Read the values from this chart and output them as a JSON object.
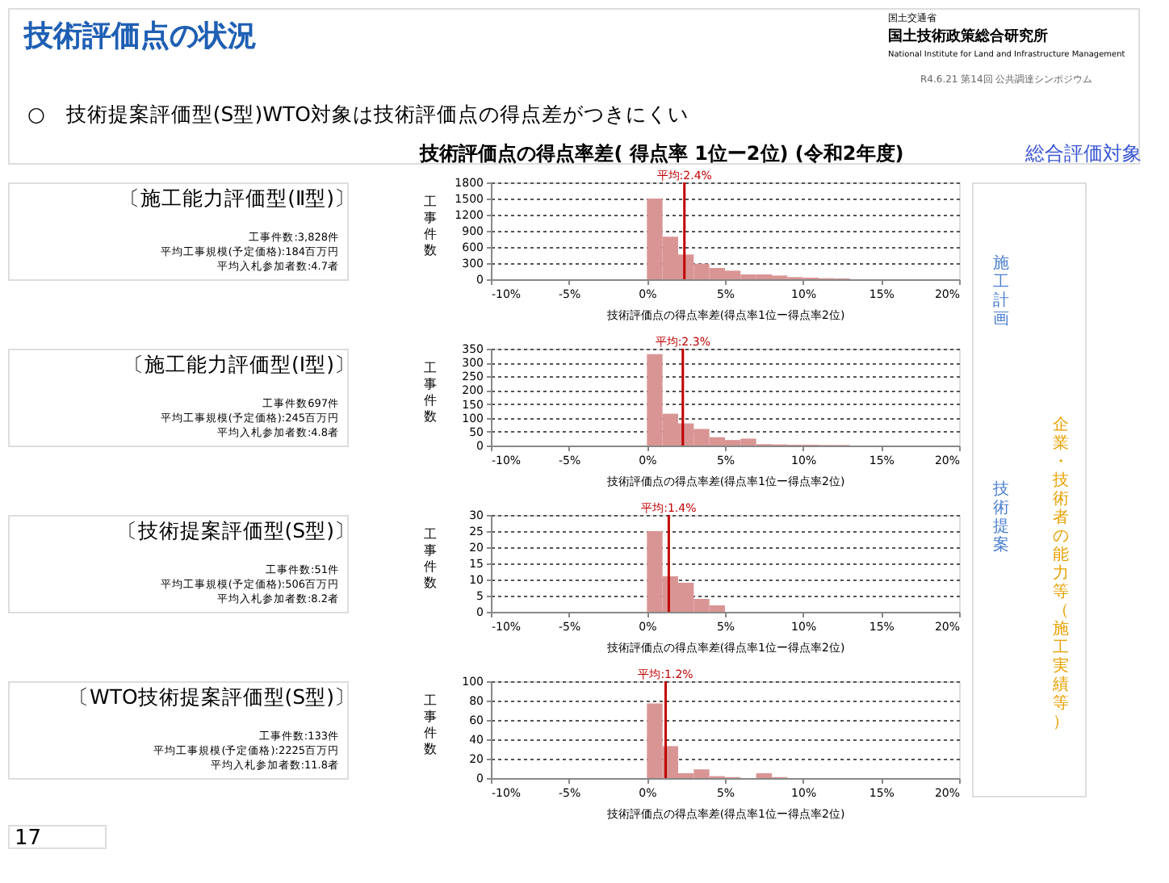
{
  "chart_data": [
    {
      "type": "other",
      "annotations": [
        "技術評価点の状況",
        "国土交通省",
        "国土技術政策総合研究所",
        "National Institute for Land and Infrastructure Management",
        "R4.6.21 第14回 公共調達シンポジウム",
        "○　技術提案評価型(S型)WTO対象は技術評価点の得点差がつきにくい",
        "技術評価点の得点率差( 得点率 1位ー2位) (令和2年度)",
        "総合評価対象",
        "17",
        "企業・技術者の能力等（施工実績等）",
        "施工計画",
        "技術提案"
      ]
    },
    {
      "type": "histogram",
      "title": "〔施工能力評価型(Ⅱ型)〕",
      "annotations": [
        "工事件数:3,828件",
        "平均工事規模(予定価格):184百万円",
        "平均入札参加者数:4.7者"
      ],
      "xlabel": "技術評価点の得点率差(得点率1位ー得点率2位)",
      "ylabel": "工事件数",
      "color": "#d99594",
      "grid": "y",
      "bins": [
        0,
        1,
        2,
        3,
        4,
        5,
        6,
        7,
        8,
        9,
        10,
        11,
        12,
        13
      ],
      "values": [
        1500,
        790,
        460,
        290,
        210,
        160,
        90,
        90,
        70,
        40,
        30,
        20,
        15
      ],
      "xlim": [
        -10,
        20
      ],
      "xticks": [
        {
          "value": -10,
          "label": "-10%"
        },
        {
          "value": -5,
          "label": "-5%"
        },
        {
          "value": 0,
          "label": "0%"
        },
        {
          "value": 5,
          "label": "5%"
        },
        {
          "value": 10,
          "label": "10%"
        },
        {
          "value": 15,
          "label": "15%"
        },
        {
          "value": 20,
          "label": "20%"
        }
      ],
      "ylim": [
        0,
        1800
      ],
      "yticks": [
        0,
        300,
        600,
        900,
        1200,
        1500,
        1800
      ],
      "ref_lines": [
        {
          "axis": "x",
          "value": 2.4,
          "label": "平均:2.4%",
          "color": "#c00000"
        }
      ]
    },
    {
      "type": "histogram",
      "title": "〔施工能力評価型(Ⅰ型)〕",
      "annotations": [
        "工事件数697件",
        "平均工事規模(予定価格):245百万円",
        "平均入札参加者数:4.8者"
      ],
      "xlabel": "技術評価点の得点率差(得点率1位ー得点率2位)",
      "ylabel": "工事件数",
      "color": "#d99594",
      "grid": "y",
      "bins": [
        0,
        1,
        2,
        3,
        4,
        5,
        6,
        7,
        8,
        9,
        10,
        11,
        12,
        13
      ],
      "values": [
        330,
        115,
        80,
        60,
        30,
        20,
        25,
        5,
        4,
        3,
        3,
        2,
        2
      ],
      "xlim": [
        -10,
        20
      ],
      "xticks": [
        {
          "value": -10,
          "label": "-10%"
        },
        {
          "value": -5,
          "label": "-5%"
        },
        {
          "value": 0,
          "label": "0%"
        },
        {
          "value": 5,
          "label": "5%"
        },
        {
          "value": 10,
          "label": "10%"
        },
        {
          "value": 15,
          "label": "15%"
        },
        {
          "value": 20,
          "label": "20%"
        }
      ],
      "ylim": [
        0,
        350
      ],
      "yticks": [
        0,
        50,
        100,
        150,
        200,
        250,
        300,
        350
      ],
      "ref_lines": [
        {
          "axis": "x",
          "value": 2.3,
          "label": "平均:2.3%",
          "color": "#c00000"
        }
      ]
    },
    {
      "type": "histogram",
      "title": "〔技術提案評価型(S型)〕",
      "annotations": [
        "工事件数:51件",
        "平均工事規模(予定価格):506百万円",
        "平均入札参加者数:8.2者"
      ],
      "xlabel": "技術評価点の得点率差(得点率1位ー得点率2位)",
      "ylabel": "工事件数",
      "color": "#d99594",
      "grid": "y",
      "bins": [
        0,
        1,
        2,
        3,
        4,
        5
      ],
      "values": [
        25,
        11,
        9,
        4,
        2
      ],
      "xlim": [
        -10,
        20
      ],
      "xticks": [
        {
          "value": -10,
          "label": "-10%"
        },
        {
          "value": -5,
          "label": "-5%"
        },
        {
          "value": 0,
          "label": "0%"
        },
        {
          "value": 5,
          "label": "5%"
        },
        {
          "value": 10,
          "label": "10%"
        },
        {
          "value": 15,
          "label": "15%"
        },
        {
          "value": 20,
          "label": "20%"
        }
      ],
      "ylim": [
        0,
        30
      ],
      "yticks": [
        0,
        5,
        10,
        15,
        20,
        25,
        30
      ],
      "ref_lines": [
        {
          "axis": "x",
          "value": 1.4,
          "label": "平均:1.4%",
          "color": "#c00000"
        }
      ]
    },
    {
      "type": "histogram",
      "title": "〔WTO技術提案評価型(S型)〕",
      "annotations": [
        "工事件数:133件",
        "平均工事規模(予定価格):2225百万円",
        "平均入札参加者数:11.8者"
      ],
      "xlabel": "技術評価点の得点率差(得点率1位ー得点率2位)",
      "ylabel": "工事件数",
      "color": "#d99594",
      "grid": "y",
      "bins": [
        0,
        1,
        2,
        3,
        4,
        5,
        6,
        7,
        8,
        9
      ],
      "values": [
        77,
        33,
        5,
        9,
        2,
        1,
        0,
        5,
        1
      ],
      "xlim": [
        -10,
        20
      ],
      "xticks": [
        {
          "value": -10,
          "label": "-10%"
        },
        {
          "value": -5,
          "label": "-5%"
        },
        {
          "value": 0,
          "label": "0%"
        },
        {
          "value": 5,
          "label": "5%"
        },
        {
          "value": 10,
          "label": "10%"
        },
        {
          "value": 15,
          "label": "15%"
        },
        {
          "value": 20,
          "label": "20%"
        }
      ],
      "ylim": [
        0,
        100
      ],
      "yticks": [
        0,
        20,
        40,
        60,
        80,
        100
      ],
      "ref_lines": [
        {
          "axis": "x",
          "value": 1.2,
          "label": "平均:1.2%",
          "color": "#c00000"
        }
      ]
    }
  ]
}
